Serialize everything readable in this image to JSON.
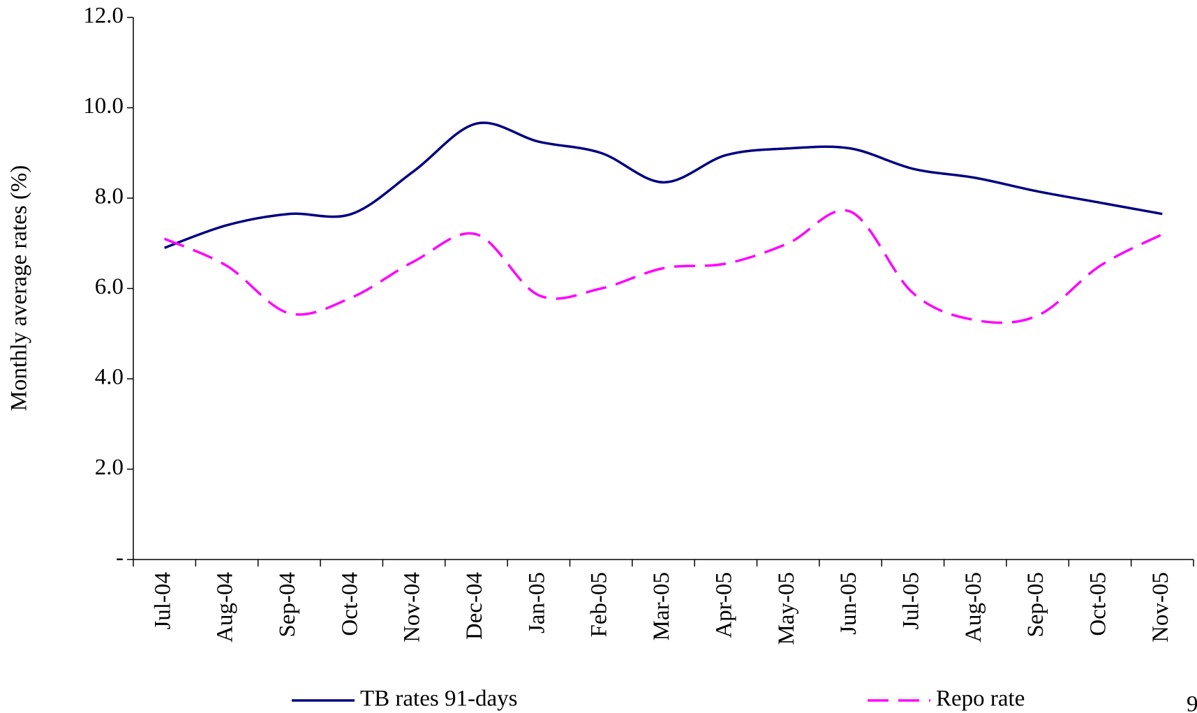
{
  "chart_data": {
    "type": "line",
    "y_label": "Monthly average rates (%)",
    "categories": [
      "Jul-04",
      "Aug-04",
      "Sep-04",
      "Oct-04",
      "Nov-04",
      "Dec-04",
      "Jan-05",
      "Feb-05",
      "Mar-05",
      "Apr-05",
      "May-05",
      "Jun-05",
      "Jul-05",
      "Aug-05",
      "Sep-05",
      "Oct-05",
      "Nov-05"
    ],
    "series": [
      {
        "name": "TB rates 91-days",
        "color": "#000080",
        "dash": false,
        "values": [
          6.9,
          7.4,
          7.65,
          7.65,
          8.6,
          9.65,
          9.25,
          9.0,
          8.35,
          8.95,
          9.1,
          9.1,
          8.65,
          8.45,
          8.15,
          7.9,
          7.65
        ]
      },
      {
        "name": "Repo rate",
        "color": "#ff00ff",
        "dash": true,
        "values": [
          7.1,
          6.5,
          5.45,
          5.8,
          6.6,
          7.2,
          5.85,
          6.0,
          6.45,
          6.55,
          7.0,
          7.7,
          5.9,
          5.3,
          5.4,
          6.5,
          7.2
        ]
      }
    ],
    "ylim": [
      0,
      12
    ],
    "yticks": [
      {
        "value": 0,
        "label": "-"
      },
      {
        "value": 2,
        "label": "2.0"
      },
      {
        "value": 4,
        "label": "4.0"
      },
      {
        "value": 6,
        "label": "6.0"
      },
      {
        "value": 8,
        "label": "8.0"
      },
      {
        "value": 10,
        "label": "10.0"
      },
      {
        "value": 12,
        "label": "12.0"
      }
    ],
    "grid": false,
    "legend": "bottom",
    "page_number": "9"
  }
}
